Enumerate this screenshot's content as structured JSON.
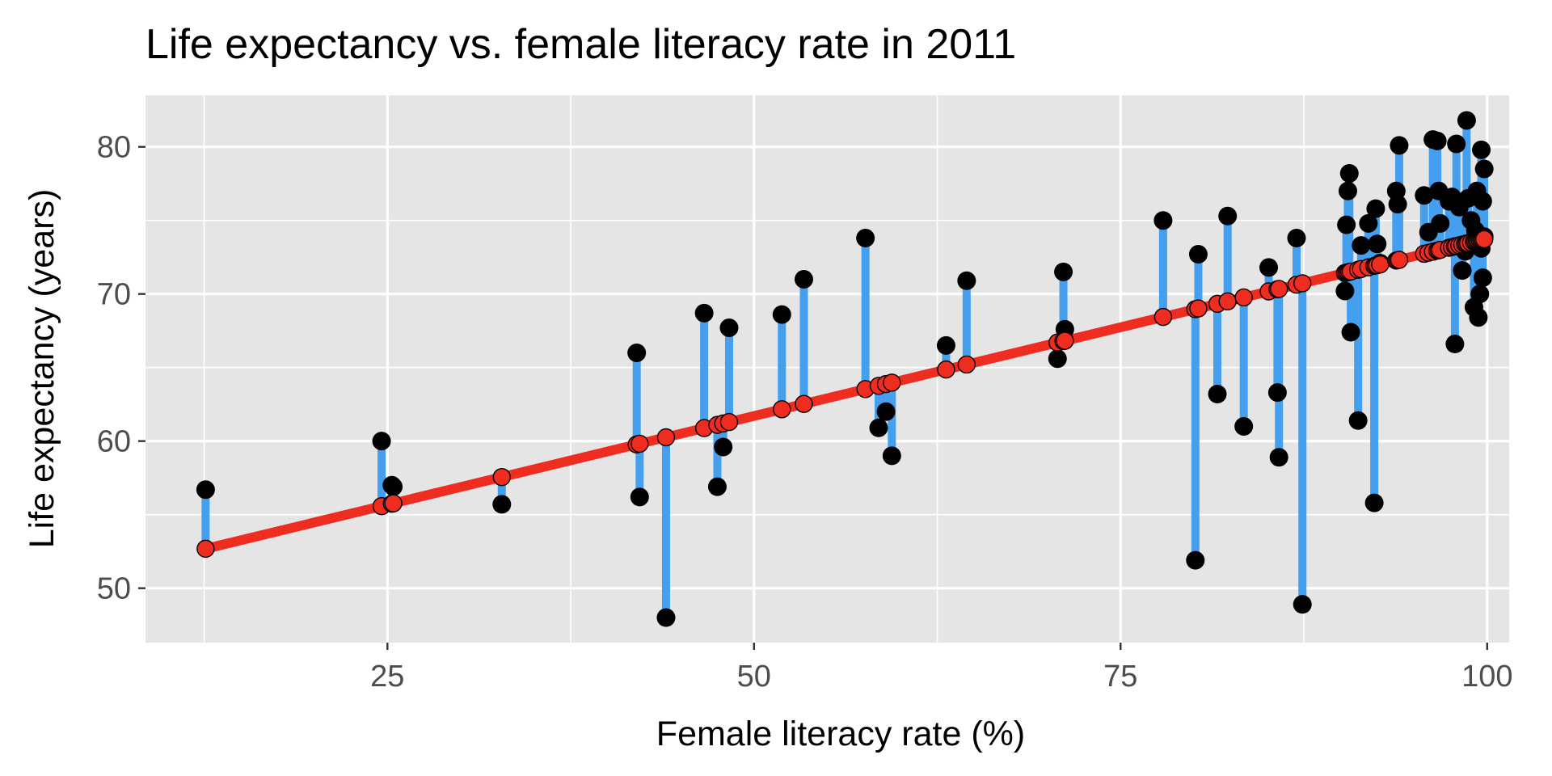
{
  "chart_data": {
    "type": "scatter",
    "title": "Life expectancy vs. female literacy rate in 2011",
    "xlabel": "Female literacy rate (%)",
    "ylabel": "Life expectancy (years)",
    "xlim": [
      8.5,
      101.5
    ],
    "ylim": [
      46.3,
      83.5
    ],
    "xticks": [
      {
        "value": 25,
        "label": "25"
      },
      {
        "value": 50,
        "label": "50"
      },
      {
        "value": 75,
        "label": "75"
      },
      {
        "value": 100,
        "label": "100"
      }
    ],
    "yticks": [
      {
        "value": 50,
        "label": "50"
      },
      {
        "value": 60,
        "label": "60"
      },
      {
        "value": 70,
        "label": "70"
      },
      {
        "value": 80,
        "label": "80"
      }
    ],
    "grid": true,
    "regression": {
      "intercept": 49.64,
      "slope": 0.2413
    },
    "colors": {
      "panel": "#e5e5e5",
      "grid": "#ffffff",
      "fit_line": "#ee2d20",
      "residual": "#449fef",
      "observed": "#000000",
      "fitted_fill": "#ee2d20",
      "fitted_stroke": "#000000"
    },
    "points": [
      {
        "x": 12.6,
        "y": 56.7
      },
      {
        "x": 24.6,
        "y": 60.0
      },
      {
        "x": 25.3,
        "y": 57.0
      },
      {
        "x": 25.4,
        "y": 56.9
      },
      {
        "x": 32.8,
        "y": 55.7
      },
      {
        "x": 42.0,
        "y": 66.0
      },
      {
        "x": 42.2,
        "y": 56.2
      },
      {
        "x": 44.0,
        "y": 48.0
      },
      {
        "x": 46.6,
        "y": 68.7
      },
      {
        "x": 47.5,
        "y": 56.9
      },
      {
        "x": 47.9,
        "y": 59.6
      },
      {
        "x": 48.3,
        "y": 67.7
      },
      {
        "x": 51.9,
        "y": 68.6
      },
      {
        "x": 53.4,
        "y": 71.0
      },
      {
        "x": 57.6,
        "y": 73.8
      },
      {
        "x": 58.5,
        "y": 60.9
      },
      {
        "x": 59.0,
        "y": 62.0
      },
      {
        "x": 59.4,
        "y": 59.0
      },
      {
        "x": 63.1,
        "y": 66.5
      },
      {
        "x": 64.5,
        "y": 70.9
      },
      {
        "x": 70.7,
        "y": 65.6
      },
      {
        "x": 71.1,
        "y": 71.5
      },
      {
        "x": 71.2,
        "y": 67.6
      },
      {
        "x": 77.9,
        "y": 75.0
      },
      {
        "x": 80.1,
        "y": 51.9
      },
      {
        "x": 80.3,
        "y": 72.7
      },
      {
        "x": 81.6,
        "y": 63.2
      },
      {
        "x": 82.3,
        "y": 75.3
      },
      {
        "x": 83.4,
        "y": 61.0
      },
      {
        "x": 85.1,
        "y": 71.8
      },
      {
        "x": 85.7,
        "y": 63.3
      },
      {
        "x": 85.8,
        "y": 58.9
      },
      {
        "x": 87.0,
        "y": 73.8
      },
      {
        "x": 87.4,
        "y": 48.9
      },
      {
        "x": 90.3,
        "y": 70.2
      },
      {
        "x": 90.4,
        "y": 74.7
      },
      {
        "x": 90.5,
        "y": 77.0
      },
      {
        "x": 90.6,
        "y": 78.2
      },
      {
        "x": 90.7,
        "y": 67.4
      },
      {
        "x": 91.2,
        "y": 61.4
      },
      {
        "x": 91.4,
        "y": 73.3
      },
      {
        "x": 91.9,
        "y": 74.8
      },
      {
        "x": 92.3,
        "y": 55.8
      },
      {
        "x": 92.4,
        "y": 75.8
      },
      {
        "x": 92.5,
        "y": 73.4
      },
      {
        "x": 92.7,
        "y": 72.1
      },
      {
        "x": 93.8,
        "y": 77.0
      },
      {
        "x": 93.9,
        "y": 76.1
      },
      {
        "x": 94.0,
        "y": 80.1
      },
      {
        "x": 95.7,
        "y": 76.7
      },
      {
        "x": 96.0,
        "y": 74.2
      },
      {
        "x": 96.3,
        "y": 80.5
      },
      {
        "x": 96.6,
        "y": 80.4
      },
      {
        "x": 96.7,
        "y": 77.0
      },
      {
        "x": 96.8,
        "y": 74.8
      },
      {
        "x": 97.4,
        "y": 76.3
      },
      {
        "x": 97.6,
        "y": 76.6
      },
      {
        "x": 97.8,
        "y": 66.6
      },
      {
        "x": 97.9,
        "y": 80.2
      },
      {
        "x": 98.1,
        "y": 75.9
      },
      {
        "x": 98.3,
        "y": 71.6
      },
      {
        "x": 98.5,
        "y": 72.9
      },
      {
        "x": 98.6,
        "y": 81.8
      },
      {
        "x": 98.7,
        "y": 76.5
      },
      {
        "x": 98.9,
        "y": 75.0
      },
      {
        "x": 99.1,
        "y": 69.1
      },
      {
        "x": 99.2,
        "y": 74.3
      },
      {
        "x": 99.3,
        "y": 77.0
      },
      {
        "x": 99.4,
        "y": 68.4
      },
      {
        "x": 99.5,
        "y": 70.0
      },
      {
        "x": 99.6,
        "y": 79.8
      },
      {
        "x": 99.6,
        "y": 73.1
      },
      {
        "x": 99.7,
        "y": 71.1
      },
      {
        "x": 99.7,
        "y": 76.3
      },
      {
        "x": 99.8,
        "y": 78.5
      },
      {
        "x": 99.8,
        "y": 73.9
      }
    ]
  }
}
